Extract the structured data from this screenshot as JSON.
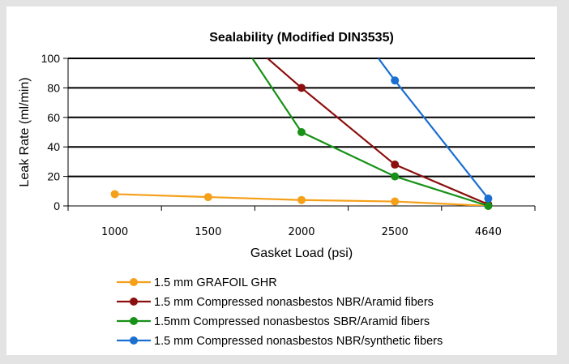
{
  "chart_data": {
    "type": "line",
    "title": "Sealability (Modified DIN3535)",
    "xlabel": "Gasket Load (psi)",
    "ylabel": "Leak Rate (ml/min)",
    "categories": [
      "1000",
      "1500",
      "2000",
      "2500",
      "4640"
    ],
    "ylim": [
      0,
      100
    ],
    "yticks": [
      "0",
      "20",
      "40",
      "60",
      "80",
      "100"
    ],
    "grid": true,
    "legend_position": "bottom",
    "series": [
      {
        "name": "1.5 mm GRAFOIL GHR",
        "color": "#f5a01a",
        "points": [
          {
            "x": "1000",
            "y": 8
          },
          {
            "x": "1500",
            "y": 6
          },
          {
            "x": "2000",
            "y": 4
          },
          {
            "x": "2500",
            "y": 3
          },
          {
            "x": "4640",
            "y": 0
          }
        ]
      },
      {
        "name": "1.5 mm Compressed nonasbestos NBR/Aramid fibers",
        "color": "#8b0f0f",
        "points": [
          {
            "x": "2000",
            "y": 80
          },
          {
            "x": "2500",
            "y": 28
          },
          {
            "x": "4640",
            "y": 1
          }
        ],
        "trend_from": {
          "x": "1500",
          "y": 135
        }
      },
      {
        "name": "1.5mm Compressed nonasbestos SBR/Aramid fibers",
        "color": "#179117",
        "points": [
          {
            "x": "2000",
            "y": 50
          },
          {
            "x": "2500",
            "y": 20
          },
          {
            "x": "4640",
            "y": 0
          }
        ],
        "trend_from": {
          "x": "1500",
          "y": 145
        }
      },
      {
        "name": "1.5 mm Compressed nonasbestos NBR/synthetic fibers",
        "color": "#1a6fd1",
        "points": [
          {
            "x": "2500",
            "y": 85
          },
          {
            "x": "4640",
            "y": 5
          }
        ],
        "trend_from": {
          "x": "2000",
          "y": 170
        }
      }
    ]
  }
}
